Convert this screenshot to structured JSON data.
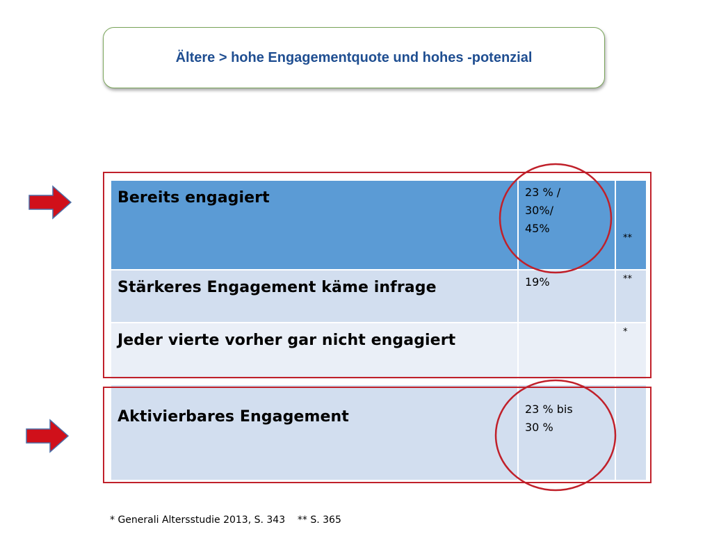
{
  "title": "Ältere > hohe Engagementquote und hohes -potenzial",
  "table": {
    "rows": [
      {
        "label": "Bereits engagiert",
        "value_lines": [
          "23 % /",
          "30%/",
          "45%"
        ],
        "note": "**"
      },
      {
        "label": "Stärkeres Engagement käme infrage",
        "value_lines": [
          "19%"
        ],
        "note": "**"
      },
      {
        "label": "Jeder vierte vorher gar nicht engagiert",
        "value_lines": [],
        "note": "*"
      },
      {
        "label": "Aktivierbares Engagement",
        "value_lines": [
          "23 % bis",
          "30 %"
        ],
        "note": ""
      }
    ]
  },
  "footnote": "* Generali Altersstudie 2013, S. 343    ** S. 365",
  "colors": {
    "title_text": "#1f4e91",
    "title_border": "#7aa55a",
    "header_row": "#5b9bd5",
    "row_dark": "#d2deef",
    "row_light": "#eaeff7",
    "highlight_red": "#c0202a",
    "arrow_red": "#d0101a"
  },
  "icons": [
    "right-arrow-icon",
    "right-arrow-icon"
  ]
}
